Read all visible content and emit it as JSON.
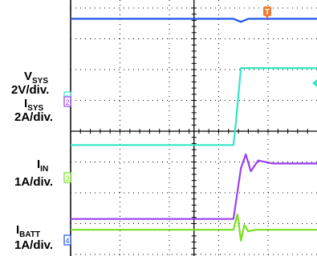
{
  "chart_data": {
    "type": "line",
    "title": "",
    "x_divisions": 10,
    "y_divisions": 8,
    "grid": true,
    "trigger_marker": "T",
    "channels": [
      {
        "id": "1",
        "label_main": "V",
        "label_sub": "SYS",
        "scale": "2V/div.",
        "color": "#33e6c4",
        "x": [
          0,
          3.3,
          3.35,
          3.45,
          9.85,
          9.9,
          10.05,
          10.4,
          14.6
        ],
        "y": [
          3.55,
          3.55,
          4.3,
          6.05,
          6.05,
          4.6,
          3.6,
          3.55,
          3.55
        ]
      },
      {
        "id": "2",
        "label_main": "I",
        "label_sub": "SYS",
        "scale": "2A/div.",
        "color": "#9b3ff0",
        "x": [
          0,
          3.3,
          3.45,
          3.55,
          3.65,
          3.8,
          4.1,
          9.85,
          9.9,
          10.05,
          10.3,
          14.6
        ],
        "y": [
          1.15,
          1.15,
          2.8,
          3.25,
          2.7,
          3.05,
          2.95,
          2.95,
          1.8,
          1.25,
          1.15,
          1.15
        ]
      },
      {
        "id": "3",
        "label_main": "I",
        "label_sub": "IN",
        "scale": "1A/div.",
        "color": "#77e020",
        "x": [
          0,
          3.3,
          3.38,
          3.45,
          3.52,
          3.6,
          3.75,
          14.6
        ],
        "y": [
          0.8,
          0.8,
          1.3,
          0.45,
          0.95,
          0.75,
          0.8,
          0.8
        ]
      },
      {
        "id": "4",
        "label_main": "I",
        "label_sub": "BATT",
        "scale": "1A/div.",
        "color": "#1e55e6",
        "x": [
          0,
          3.3,
          3.45,
          3.6,
          9.2,
          9.3,
          9.4,
          14.6
        ],
        "y": [
          7.65,
          7.65,
          7.55,
          7.65,
          7.65,
          7.72,
          7.65,
          7.65
        ]
      }
    ]
  }
}
